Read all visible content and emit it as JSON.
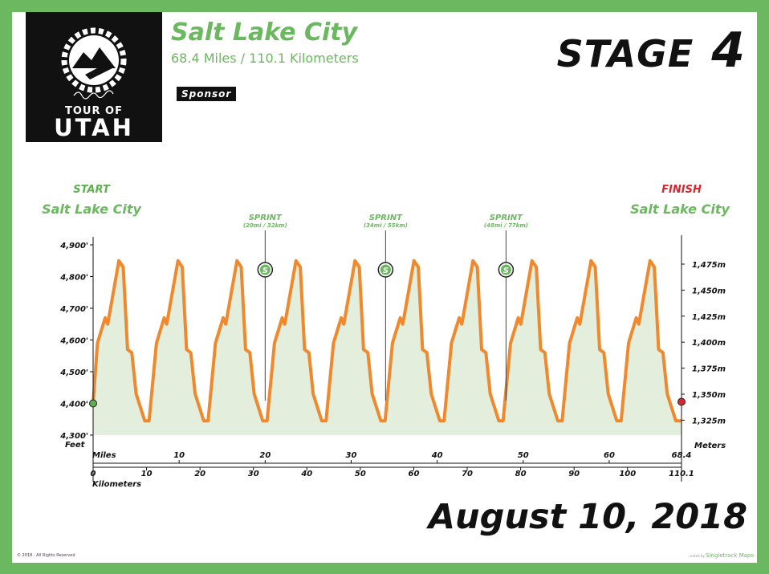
{
  "header": {
    "city": "Salt Lake City",
    "distance": "68.4 Miles / 110.1 Kilometers",
    "stage_word": "Stage",
    "stage_number": "4",
    "sponsor": "Sponsor",
    "date": "August 10, 2018"
  },
  "logo": {
    "line1": "TOUR OF",
    "line2": "UTAH"
  },
  "footer": {
    "copyright": "© 2018 · All Rights Reserved",
    "credit": "Singletrack Maps"
  },
  "colors": {
    "green": "#6cb860",
    "profile": "#f0892d",
    "fill": "#e3eedd",
    "finish": "#d7262f",
    "start": "#5fae4f"
  },
  "chart_data": {
    "type": "area",
    "start": {
      "label": "START",
      "name": "Salt Lake City"
    },
    "finish": {
      "label": "FINISH",
      "name": "Salt Lake City"
    },
    "y_left": {
      "label": "Feet",
      "range": [
        4300,
        4900
      ],
      "ticks": [
        4900,
        4800,
        4700,
        4600,
        4500,
        4400,
        4300
      ],
      "tick_labels": [
        "4,900'",
        "4,800'",
        "4,700'",
        "4,600'",
        "4,500'",
        "4,400'",
        "4,300'"
      ]
    },
    "y_right": {
      "label": "Meters",
      "ticks": [
        1475,
        1450,
        1425,
        1400,
        1375,
        1350,
        1325
      ],
      "tick_labels": [
        "1,475m",
        "1,450m",
        "1,425m",
        "1,400m",
        "1,375m",
        "1,350m",
        "1,325m"
      ]
    },
    "x_miles": {
      "label": "Miles",
      "range": [
        0,
        68.4
      ],
      "ticks": [
        10,
        20,
        30,
        40,
        50,
        60
      ],
      "end_label": "68.4"
    },
    "x_km": {
      "label": "Kilometers",
      "ticks": [
        0,
        10,
        20,
        30,
        40,
        50,
        60,
        70,
        80,
        90,
        100
      ],
      "tick_labels": [
        "0",
        "10",
        "20",
        "30",
        "40",
        "50",
        "60",
        "70",
        "80",
        "90",
        "100"
      ],
      "end_label": "110.1"
    },
    "sprints": [
      {
        "label": "SPRINT",
        "detail": "(20mi / 32km)",
        "mile": 20,
        "icon_label": "S"
      },
      {
        "label": "SPRINT",
        "detail": "(34mi / 55km)",
        "mile": 34,
        "icon_label": "S"
      },
      {
        "label": "SPRINT",
        "detail": "(48mi / 77km)",
        "mile": 48,
        "icon_label": "S"
      }
    ],
    "laps": 10,
    "lap_profile_miles": [
      0,
      0.5,
      1.4,
      1.7,
      3.0,
      3.5,
      4.0,
      4.5,
      5.0,
      6.0,
      6.5
    ],
    "lap_profile_feet": [
      4400,
      4590,
      4670,
      4650,
      4850,
      4830,
      4570,
      4560,
      4430,
      4345,
      4345
    ],
    "x": [
      0,
      0.5,
      1.4,
      1.7,
      3.0,
      3.5,
      4.0,
      4.5,
      5.0,
      6.0,
      6.5,
      7.36,
      8.26,
      8.56,
      9.86,
      10.36,
      10.86,
      11.36,
      11.86,
      12.86,
      13.36,
      14.22,
      15.12,
      15.42,
      16.72,
      17.22,
      17.72,
      18.22,
      18.72,
      19.72,
      20.22,
      21.08,
      21.98,
      22.28,
      23.58,
      24.08,
      24.58,
      25.08,
      25.58,
      26.58,
      27.08,
      27.94,
      28.84,
      29.14,
      30.44,
      30.94,
      31.44,
      31.94,
      32.44,
      33.44,
      33.94,
      34.8,
      35.7,
      36.0,
      37.3,
      37.8,
      38.3,
      38.8,
      39.3,
      40.3,
      40.8,
      41.66,
      42.56,
      42.86,
      44.16,
      44.66,
      45.16,
      45.66,
      46.16,
      47.16,
      47.66,
      48.52,
      49.42,
      49.72,
      51.02,
      51.52,
      52.02,
      52.52,
      53.02,
      54.02,
      54.52,
      55.38,
      56.28,
      56.58,
      57.88,
      58.38,
      58.88,
      59.38,
      59.88,
      60.88,
      61.38,
      62.24,
      63.14,
      63.44,
      64.74,
      65.24,
      65.74,
      66.24,
      66.74,
      67.74,
      68.4
    ],
    "y": [
      4400,
      4590,
      4670,
      4650,
      4850,
      4830,
      4570,
      4560,
      4430,
      4345,
      4345,
      4590,
      4670,
      4650,
      4850,
      4830,
      4570,
      4560,
      4430,
      4345,
      4345,
      4590,
      4670,
      4650,
      4850,
      4830,
      4570,
      4560,
      4430,
      4345,
      4345,
      4590,
      4670,
      4650,
      4850,
      4830,
      4570,
      4560,
      4430,
      4345,
      4345,
      4590,
      4670,
      4650,
      4850,
      4830,
      4570,
      4560,
      4430,
      4345,
      4345,
      4590,
      4670,
      4650,
      4850,
      4830,
      4570,
      4560,
      4430,
      4345,
      4345,
      4590,
      4670,
      4650,
      4850,
      4830,
      4570,
      4560,
      4430,
      4345,
      4345,
      4590,
      4670,
      4650,
      4850,
      4830,
      4570,
      4560,
      4430,
      4345,
      4345,
      4590,
      4670,
      4650,
      4850,
      4830,
      4570,
      4560,
      4430,
      4345,
      4345,
      4590,
      4670,
      4650,
      4850,
      4830,
      4570,
      4560,
      4430,
      4345,
      4345
    ]
  }
}
